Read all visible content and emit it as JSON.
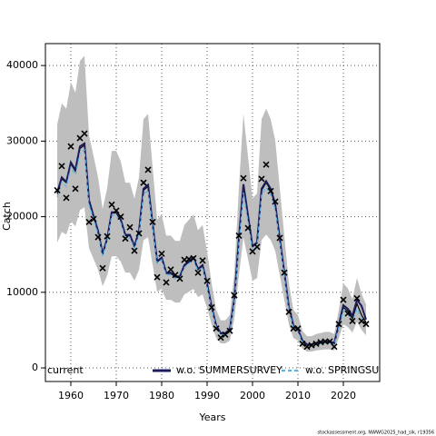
{
  "chart_data": {
    "type": "line",
    "xlabel": "Years",
    "ylabel": "Catch",
    "footer": "stockassessment.org, NWWG2025_had_sik, r19356",
    "x": [
      1957,
      1958,
      1959,
      1960,
      1961,
      1962,
      1963,
      1964,
      1965,
      1966,
      1967,
      1968,
      1969,
      1970,
      1971,
      1972,
      1973,
      1974,
      1975,
      1976,
      1977,
      1978,
      1979,
      1980,
      1981,
      1982,
      1983,
      1984,
      1985,
      1986,
      1987,
      1988,
      1989,
      1990,
      1991,
      1992,
      1993,
      1994,
      1995,
      1996,
      1997,
      1998,
      1999,
      2000,
      2001,
      2002,
      2003,
      2004,
      2005,
      2006,
      2007,
      2008,
      2009,
      2010,
      2011,
      2012,
      2013,
      2014,
      2015,
      2016,
      2017,
      2018,
      2019,
      2020,
      2021,
      2022,
      2023,
      2024,
      2025
    ],
    "series": [
      {
        "name": "current",
        "color": "#000000",
        "dash": false,
        "width": 1.2,
        "values": [
          23000,
          25000,
          24500,
          27000,
          26000,
          29000,
          29500,
          22000,
          20000,
          18000,
          15000,
          17000,
          20500,
          20500,
          19500,
          17500,
          17500,
          16000,
          18000,
          23500,
          24000,
          19000,
          14000,
          14500,
          12500,
          12500,
          12000,
          12000,
          13500,
          14000,
          14500,
          13000,
          13500,
          11000,
          8000,
          5500,
          4500,
          4500,
          5000,
          9000,
          17000,
          24000,
          20000,
          16000,
          16500,
          23500,
          24500,
          23500,
          21500,
          17000,
          12500,
          8000,
          5500,
          5000,
          3500,
          3000,
          3000,
          3200,
          3300,
          3400,
          3400,
          3200,
          5500,
          8000,
          7500,
          6500,
          8500,
          7000,
          6000
        ]
      },
      {
        "name": "w.o. SUMMERSURVEY",
        "color": "#1c1c5c",
        "dash": false,
        "width": 2,
        "values": [
          23200,
          25200,
          24600,
          27200,
          26200,
          29300,
          29700,
          22200,
          20100,
          18100,
          15100,
          17100,
          20600,
          20600,
          19600,
          17600,
          17600,
          16100,
          18100,
          23700,
          24200,
          19100,
          14100,
          14600,
          12600,
          12600,
          12100,
          12100,
          13600,
          14100,
          14600,
          13100,
          13600,
          11100,
          8100,
          5600,
          4600,
          4600,
          5100,
          9100,
          17200,
          24300,
          20200,
          16100,
          16600,
          23700,
          24700,
          23700,
          21700,
          17100,
          12600,
          8100,
          5600,
          5100,
          3600,
          3100,
          3100,
          3300,
          3400,
          3500,
          3500,
          3300,
          5700,
          8300,
          7800,
          6900,
          9000,
          8200,
          6400
        ]
      },
      {
        "name": "w.o. SPRINGSURVEY",
        "color": "#56b4e9",
        "dash": true,
        "width": 1.2,
        "values": [
          22600,
          24600,
          24000,
          26500,
          25500,
          28400,
          28900,
          21600,
          19700,
          17700,
          14800,
          16800,
          20200,
          20200,
          19200,
          17200,
          17200,
          15800,
          17700,
          23000,
          23500,
          18700,
          13800,
          14300,
          12300,
          12300,
          11800,
          11800,
          13300,
          13800,
          14300,
          12800,
          13300,
          10800,
          7800,
          5400,
          4400,
          4400,
          4900,
          8700,
          16500,
          23200,
          19400,
          15600,
          16100,
          22900,
          23900,
          22900,
          21000,
          16600,
          12200,
          7800,
          5300,
          4800,
          3400,
          2900,
          2900,
          3100,
          3200,
          3300,
          3300,
          3100,
          5300,
          7600,
          7100,
          6100,
          7800,
          6500,
          5600
        ]
      }
    ],
    "observed": [
      23500,
      26700,
      22500,
      29300,
      23700,
      30400,
      31000,
      19300,
      19700,
      17300,
      13200,
      17400,
      21600,
      20800,
      20000,
      17100,
      18600,
      15500,
      17800,
      24500,
      26200,
      19300,
      12000,
      15100,
      11300,
      13000,
      12300,
      11800,
      14300,
      14400,
      14500,
      12600,
      14200,
      11500,
      8000,
      5200,
      4000,
      4400,
      4900,
      9600,
      17500,
      25100,
      18500,
      15400,
      16000,
      25000,
      26900,
      23400,
      22000,
      17200,
      12600,
      7400,
      5200,
      5200,
      3200,
      2800,
      3000,
      3200,
      3400,
      3500,
      3500,
      2800,
      5800,
      9000,
      7200,
      6200,
      9200,
      6200,
      5800
    ],
    "band_upper": [
      32200,
      35000,
      34300,
      37800,
      36400,
      40600,
      41300,
      30800,
      28000,
      25200,
      21000,
      23800,
      28700,
      28700,
      27300,
      24500,
      24500,
      22400,
      25200,
      32900,
      33600,
      26600,
      19600,
      20300,
      17500,
      17500,
      16800,
      16800,
      18900,
      19600,
      20300,
      18200,
      18900,
      15400,
      11200,
      7700,
      6300,
      6300,
      7000,
      12600,
      23800,
      33600,
      28000,
      22400,
      23100,
      32900,
      34300,
      32900,
      30100,
      23800,
      17500,
      11200,
      7700,
      7000,
      4900,
      4200,
      4200,
      4480,
      4620,
      4760,
      4760,
      4480,
      7700,
      11200,
      10500,
      9100,
      11900,
      9800,
      8400
    ],
    "band_lower": [
      16560,
      18000,
      17640,
      19440,
      18720,
      20880,
      21240,
      15840,
      14400,
      12960,
      10800,
      12240,
      14760,
      14760,
      14040,
      12600,
      12600,
      11520,
      12960,
      16920,
      17280,
      13680,
      10080,
      10440,
      9000,
      9000,
      8640,
      8640,
      9720,
      10080,
      10440,
      9360,
      9720,
      7920,
      5760,
      3960,
      3240,
      3240,
      3600,
      6480,
      12240,
      17280,
      14400,
      11520,
      11880,
      16920,
      17640,
      16920,
      15480,
      12240,
      9000,
      5760,
      3960,
      3600,
      2520,
      2160,
      2160,
      2304,
      2376,
      2448,
      2448,
      2304,
      3960,
      5760,
      5400,
      4680,
      6120,
      5040,
      4320
    ],
    "band_color": "#bebebe",
    "marker_color": "#000000",
    "xlim": [
      1954.4,
      2028
    ],
    "ylim": [
      -1800,
      42900
    ],
    "xticks": [
      1960,
      1970,
      1980,
      1990,
      2000,
      2010,
      2020
    ],
    "yticks": [
      0,
      10000,
      20000,
      30000,
      40000
    ],
    "grid": true,
    "legend": "bottom"
  }
}
